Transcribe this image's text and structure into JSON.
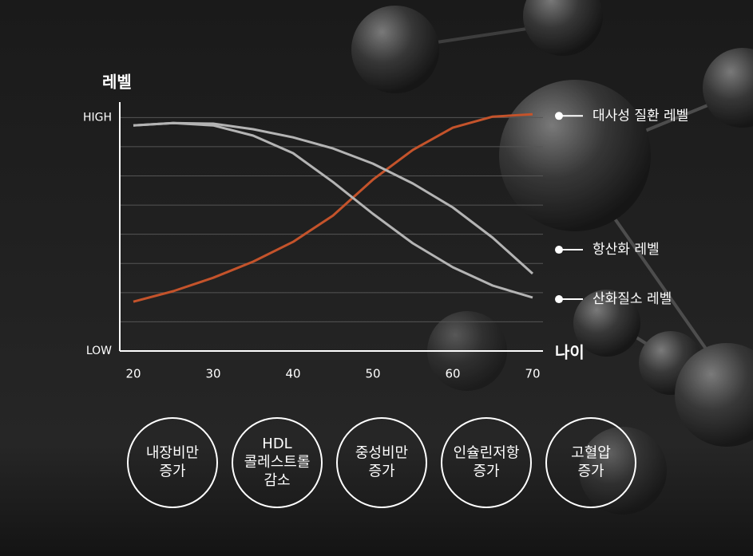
{
  "chart_data": {
    "type": "line",
    "y_label": "레벨",
    "x_label": "나이",
    "x": [
      20,
      25,
      30,
      35,
      40,
      45,
      50,
      55,
      60,
      65,
      70
    ],
    "xlim": [
      18.3,
      71.3
    ],
    "xticks": [
      20,
      30,
      40,
      50,
      60,
      70
    ],
    "ylim": [
      0,
      8.2
    ],
    "yticks": [
      {
        "value": 0,
        "label": "LOW"
      },
      {
        "value": 8,
        "label": "HIGH"
      }
    ],
    "grid": true,
    "grid_values": [
      1,
      2,
      3,
      4,
      5,
      6,
      7,
      8
    ],
    "series": [
      {
        "name": "대사성 질환 레벨",
        "color": "#c4532b",
        "values": [
          1.69,
          2.05,
          2.51,
          3.06,
          3.74,
          4.64,
          5.87,
          6.89,
          7.65,
          8.03,
          8.11
        ]
      },
      {
        "name": "항산화 레벨",
        "color": "#b4b4b4",
        "values": [
          7.73,
          7.81,
          7.79,
          7.6,
          7.32,
          6.94,
          6.42,
          5.74,
          4.92,
          3.88,
          2.65
        ]
      },
      {
        "name": "산화질소 레벨",
        "color": "#b4b4b4",
        "values": [
          7.73,
          7.81,
          7.73,
          7.38,
          6.78,
          5.79,
          4.7,
          3.69,
          2.87,
          2.24,
          1.83
        ]
      }
    ]
  },
  "factors": [
    [
      "내장비만",
      "증가"
    ],
    [
      "HDL",
      "콜레스트롤",
      "감소"
    ],
    [
      "중성비만",
      "증가"
    ],
    [
      "인슐린저항",
      "증가"
    ],
    [
      "고혈압",
      "증가"
    ]
  ]
}
